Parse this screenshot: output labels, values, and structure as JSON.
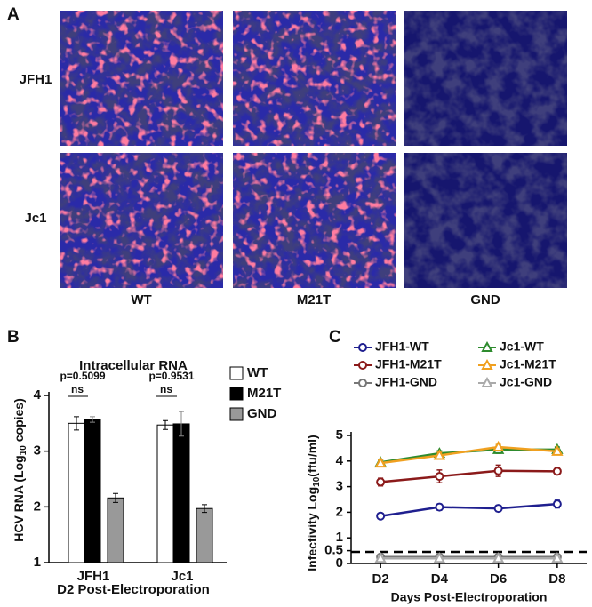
{
  "panel_a": {
    "panel": "A",
    "rows": [
      "JFH1",
      "Jc1"
    ],
    "columns": [
      "WT",
      "M21T",
      "GND"
    ]
  },
  "chart_data": [
    {
      "type": "bar",
      "panel": "B",
      "title": "Intracellular RNA",
      "ylabel_parts": [
        "HCV RNA (Log",
        "10",
        " copies)"
      ],
      "xlabel": "D2 Post-Electroporation",
      "categories": [
        "JFH1",
        "Jc1"
      ],
      "series": [
        {
          "name": "WT",
          "color": "#ffffff",
          "values": [
            3.5,
            3.47
          ],
          "errors": [
            0.12,
            0.08
          ]
        },
        {
          "name": "M21T",
          "color": "#000000",
          "values": [
            3.57,
            3.49
          ],
          "errors": [
            0.05,
            0.22
          ]
        },
        {
          "name": "GND",
          "color": "#999999",
          "values": [
            2.16,
            1.97
          ],
          "errors": [
            0.08,
            0.07
          ]
        }
      ],
      "annotations": [
        "p=0.5099",
        "ns",
        "p=0.9531",
        "ns"
      ],
      "ylim": [
        1,
        4
      ],
      "yticks": [
        1,
        2,
        3,
        4
      ]
    },
    {
      "type": "line",
      "panel": "C",
      "ylabel_parts": [
        "Infectivity Log",
        "10",
        "(ffu/ml)"
      ],
      "xlabel": "Days Post-Electroporation",
      "categories": [
        "D2",
        "D4",
        "D6",
        "D8"
      ],
      "series": [
        {
          "name": "JFH1-WT",
          "color": "#1f1f8f",
          "marker": "circle",
          "values": [
            1.85,
            2.2,
            2.15,
            2.32
          ],
          "errors": [
            0.08,
            0.12,
            0.12,
            0.15
          ]
        },
        {
          "name": "Jc1-WT",
          "color": "#2e8b2e",
          "marker": "triangle",
          "values": [
            3.95,
            4.3,
            4.45,
            4.45
          ],
          "errors": [
            0.1,
            0.1,
            0.15,
            0.1
          ]
        },
        {
          "name": "JFH1-M21T",
          "color": "#8b1a1a",
          "marker": "circle",
          "values": [
            3.18,
            3.4,
            3.62,
            3.6
          ],
          "errors": [
            0.15,
            0.25,
            0.22,
            0.12
          ]
        },
        {
          "name": "Jc1-M21T",
          "color": "#f0a020",
          "marker": "triangle",
          "values": [
            3.92,
            4.22,
            4.55,
            4.38
          ],
          "errors": [
            0.12,
            0.12,
            0.1,
            0.1
          ]
        },
        {
          "name": "JFH1-GND",
          "color": "#777777",
          "marker": "circle",
          "values": [
            0.25,
            0.25,
            0.25,
            0.25
          ],
          "errors": [
            0,
            0,
            0,
            0
          ]
        },
        {
          "name": "Jc1-GND",
          "color": "#aaaaaa",
          "marker": "triangle",
          "values": [
            0.2,
            0.2,
            0.2,
            0.2
          ],
          "errors": [
            0,
            0,
            0,
            0
          ]
        }
      ],
      "threshold": 0.45,
      "ylim": [
        0,
        5
      ],
      "yticks": [
        0,
        0.5,
        1,
        2,
        3,
        4,
        5
      ]
    }
  ]
}
